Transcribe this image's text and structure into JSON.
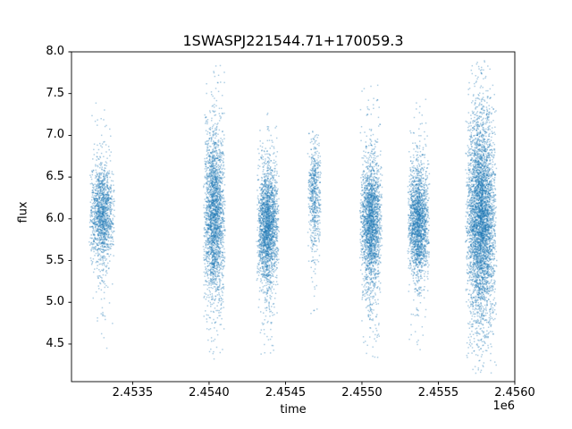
{
  "chart_data": {
    "type": "scatter",
    "title": "1SWASPJ221544.71+170059.3",
    "xlabel": "time",
    "ylabel": "flux",
    "offset_text": "1e6",
    "xlim": [
      2453100,
      2456000
    ],
    "ylim": [
      4.05,
      8.0
    ],
    "x_ticks": {
      "values": [
        2453500,
        2454000,
        2454500,
        2455000,
        2455500,
        2456000
      ],
      "labels": [
        "2.4535",
        "2.4540",
        "2.4545",
        "2.4550",
        "2.4555",
        "2.4560"
      ]
    },
    "y_ticks": {
      "values": [
        4.5,
        5.0,
        5.5,
        6.0,
        6.5,
        7.0,
        7.5,
        8.0
      ],
      "labels": [
        "4.5",
        "5.0",
        "5.5",
        "6.0",
        "6.5",
        "7.0",
        "7.5",
        "8.0"
      ]
    },
    "grid": false,
    "legend": null,
    "point_color": "#1f77b4",
    "point_alpha": 0.35,
    "point_size": 1.5,
    "spine_color": "#000000",
    "clusters": [
      {
        "x_center": 2453300,
        "x_halfwidth": 85,
        "count": 1500,
        "y_mean": 6.05,
        "core_sigma": 0.28,
        "core_frac": 0.85,
        "tail_sigma": 0.65,
        "y_min": 4.45,
        "y_max": 7.85
      },
      {
        "x_center": 2454035,
        "x_halfwidth": 75,
        "count": 2400,
        "y_mean": 6.05,
        "core_sigma": 0.48,
        "core_frac": 0.8,
        "tail_sigma": 0.85,
        "y_min": 4.3,
        "y_max": 7.85
      },
      {
        "x_center": 2454385,
        "x_halfwidth": 75,
        "count": 2200,
        "y_mean": 5.9,
        "core_sigma": 0.34,
        "core_frac": 0.85,
        "tail_sigma": 0.75,
        "y_min": 4.3,
        "y_max": 7.3
      },
      {
        "x_center": 2454690,
        "x_halfwidth": 45,
        "count": 600,
        "y_mean": 6.3,
        "core_sigma": 0.33,
        "core_frac": 0.8,
        "tail_sigma": 0.6,
        "y_min": 4.5,
        "y_max": 7.05
      },
      {
        "x_center": 2455060,
        "x_halfwidth": 75,
        "count": 2200,
        "y_mean": 5.95,
        "core_sigma": 0.36,
        "core_frac": 0.82,
        "tail_sigma": 0.8,
        "y_min": 4.3,
        "y_max": 7.6
      },
      {
        "x_center": 2455372,
        "x_halfwidth": 75,
        "count": 2000,
        "y_mean": 5.95,
        "core_sigma": 0.32,
        "core_frac": 0.85,
        "tail_sigma": 0.7,
        "y_min": 4.4,
        "y_max": 7.5
      },
      {
        "x_center": 2455780,
        "x_halfwidth": 105,
        "count": 4500,
        "y_mean": 6.0,
        "core_sigma": 0.55,
        "core_frac": 0.75,
        "tail_sigma": 0.95,
        "y_min": 4.15,
        "y_max": 7.9
      }
    ]
  }
}
